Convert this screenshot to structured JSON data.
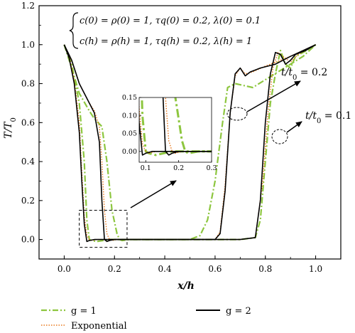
{
  "chart_data": {
    "type": "line",
    "xlabel": "x/h",
    "ylabel": "T/T0",
    "xlim": [
      -0.1,
      1.1
    ],
    "ylim": [
      -0.1,
      1.2
    ],
    "xticks": [
      0.0,
      0.2,
      0.4,
      0.6,
      0.8,
      1.0
    ],
    "yticks": [
      0.0,
      0.2,
      0.4,
      0.6,
      0.8,
      1.0,
      1.2
    ],
    "xtick_labels": [
      "0.0",
      "0.2",
      "0.4",
      "0.6",
      "0.8",
      "1.0"
    ],
    "ytick_labels": [
      "0.0",
      "0.2",
      "0.4",
      "0.6",
      "0.8",
      "1.0",
      "1.2"
    ],
    "conditions": [
      "c(0) = ρ(0) = 1, τq(0) = 0.2, λ(0) = 0.1",
      "c(h) = ρ(h) = 1, τq(h) = 0.2, λ(h) = 1"
    ],
    "annotations": [
      "t/t0 = 0.2",
      "t/t0 = 0.1"
    ],
    "legend_position": "bottom",
    "series": [
      {
        "name": "g = 1",
        "color": "#8dc63f",
        "dash": "dashdot",
        "time": 0.1,
        "x": [
          0.0,
          0.03,
          0.06,
          0.08,
          0.09,
          0.1,
          0.11,
          0.13,
          0.18,
          0.7,
          0.76,
          0.78,
          0.8,
          0.82,
          0.84,
          0.86,
          0.88,
          0.9,
          0.92,
          0.95,
          1.0
        ],
        "y": [
          1.0,
          0.9,
          0.7,
          0.4,
          0.1,
          0.0,
          -0.005,
          -0.01,
          0.0,
          0.0,
          0.01,
          0.1,
          0.4,
          0.7,
          0.85,
          0.97,
          0.9,
          0.88,
          0.94,
          0.96,
          1.0
        ]
      },
      {
        "name": "g = 1",
        "color": "#8dc63f",
        "dash": "dashdot",
        "time": 0.2,
        "x": [
          0.0,
          0.03,
          0.06,
          0.1,
          0.12,
          0.15,
          0.17,
          0.19,
          0.21,
          0.22,
          0.23,
          0.26,
          0.5,
          0.54,
          0.57,
          0.6,
          0.63,
          0.65,
          0.68,
          0.75,
          0.85,
          0.95,
          1.0
        ],
        "y": [
          1.0,
          0.88,
          0.75,
          0.66,
          0.62,
          0.58,
          0.4,
          0.15,
          0.03,
          0.0,
          -0.005,
          0.0,
          0.0,
          0.02,
          0.1,
          0.3,
          0.6,
          0.78,
          0.8,
          0.78,
          0.86,
          0.94,
          1.0
        ]
      },
      {
        "name": "g = 2",
        "color": "#000000",
        "dash": "solid",
        "time": 0.1,
        "x": [
          0.0,
          0.02,
          0.04,
          0.06,
          0.07,
          0.08,
          0.09,
          0.1,
          0.12,
          0.3,
          0.7,
          0.76,
          0.78,
          0.8,
          0.82,
          0.84,
          0.86,
          0.88,
          0.9,
          0.92,
          0.96,
          1.0
        ],
        "y": [
          1.0,
          0.93,
          0.8,
          0.55,
          0.3,
          0.08,
          -0.01,
          -0.005,
          0.0,
          0.0,
          0.0,
          0.01,
          0.2,
          0.6,
          0.85,
          0.96,
          0.95,
          0.9,
          0.92,
          0.95,
          0.97,
          1.0
        ]
      },
      {
        "name": "g = 2",
        "color": "#000000",
        "dash": "solid",
        "time": 0.2,
        "x": [
          0.0,
          0.03,
          0.06,
          0.1,
          0.12,
          0.14,
          0.15,
          0.16,
          0.17,
          0.18,
          0.2,
          0.6,
          0.62,
          0.64,
          0.66,
          0.68,
          0.7,
          0.72,
          0.74,
          0.78,
          0.84,
          0.9,
          1.0
        ],
        "y": [
          1.0,
          0.92,
          0.8,
          0.7,
          0.65,
          0.5,
          0.2,
          0.0,
          -0.01,
          -0.005,
          0.0,
          0.0,
          0.03,
          0.25,
          0.65,
          0.85,
          0.88,
          0.84,
          0.86,
          0.88,
          0.9,
          0.94,
          1.0
        ]
      },
      {
        "name": "Exponential",
        "color": "#e8761a",
        "dash": "dotted",
        "time": 0.1,
        "x": [
          0.0,
          0.02,
          0.04,
          0.06,
          0.07,
          0.08,
          0.09,
          0.1,
          0.11,
          0.13,
          0.3,
          0.7,
          0.76,
          0.79,
          0.81,
          0.83,
          0.85,
          0.87,
          0.9,
          0.93,
          0.96,
          1.0
        ],
        "y": [
          1.0,
          0.94,
          0.82,
          0.6,
          0.35,
          0.12,
          0.02,
          0.0,
          -0.005,
          0.0,
          0.0,
          0.0,
          0.01,
          0.3,
          0.65,
          0.88,
          0.96,
          0.94,
          0.91,
          0.95,
          0.97,
          1.0
        ]
      },
      {
        "name": "Exponential",
        "color": "#e8761a",
        "dash": "dotted",
        "time": 0.2,
        "x": [
          0.0,
          0.03,
          0.06,
          0.1,
          0.12,
          0.14,
          0.15,
          0.16,
          0.17,
          0.18,
          0.19,
          0.21,
          0.6,
          0.62,
          0.64,
          0.66,
          0.68,
          0.7,
          0.72,
          0.75,
          0.8,
          0.9,
          1.0
        ],
        "y": [
          1.0,
          0.92,
          0.8,
          0.7,
          0.66,
          0.58,
          0.4,
          0.15,
          0.03,
          0.0,
          -0.005,
          0.0,
          0.0,
          0.04,
          0.28,
          0.65,
          0.84,
          0.88,
          0.85,
          0.86,
          0.89,
          0.94,
          1.0
        ]
      }
    ],
    "legend": [
      {
        "name": "g = 1",
        "color": "#8dc63f",
        "dash": "dashdot"
      },
      {
        "name": "g = 2",
        "color": "#000000",
        "dash": "solid"
      },
      {
        "name": "Exponential",
        "color": "#e8761a",
        "dash": "dotted"
      }
    ],
    "inset": {
      "xlim": [
        0.08,
        0.3
      ],
      "ylim": [
        -0.03,
        0.15
      ],
      "xticks": [
        0.1,
        0.2,
        0.3
      ],
      "yticks": [
        0.0,
        0.05,
        0.1,
        0.15
      ],
      "xtick_labels": [
        "0.1",
        "0.2",
        "0.3"
      ],
      "ytick_labels": [
        "0.00",
        "0.05",
        "0.10",
        "0.15"
      ],
      "zoom_region": {
        "x": [
          0.06,
          0.25
        ],
        "y": [
          -0.04,
          0.15
        ]
      }
    }
  }
}
